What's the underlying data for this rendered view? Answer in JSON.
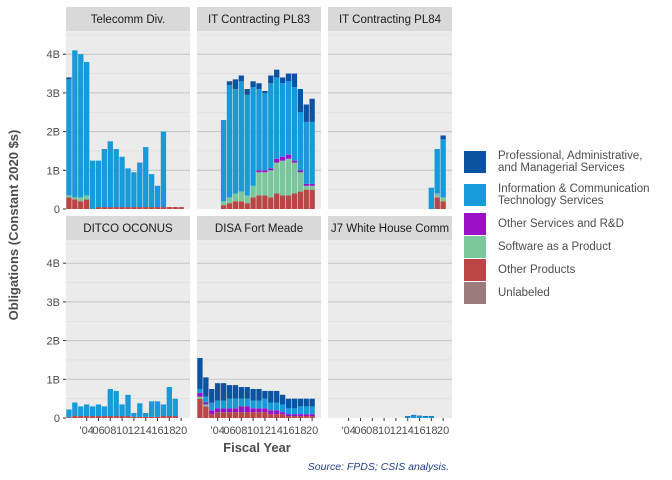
{
  "colors": {
    "Professional, Administrative, and Managerial Services": "#0b53a0",
    "Information & Communication Technology Services": "#169ad9",
    "Other Services and R&D": "#9b0fc8",
    "Software as a Product": "#7bc79c",
    "Other Products": "#b94545",
    "Unlabeled": "#9a7a7a"
  },
  "legend": [
    {
      "label": "Professional, Administrative,\nand Managerial Services",
      "color": "#0b53a0"
    },
    {
      "label": "Information & Communication\nTechnology Services",
      "color": "#169ad9"
    },
    {
      "label": "Other Services and R&D",
      "color": "#9b0fc8"
    },
    {
      "label": "Software as a Product",
      "color": "#7bc79c"
    },
    {
      "label": "Other Products",
      "color": "#b94545"
    },
    {
      "label": "Unlabeled",
      "color": "#9a7a7a"
    }
  ],
  "source": "Source: FPDS; CSIS analysis.",
  "chart_data": {
    "type": "bar",
    "stacked": true,
    "xlabel": "Fiscal Year",
    "ylabel": "Obligations (Constant 2020 $s)",
    "ylim": [
      0,
      4.6
    ],
    "yticks": [
      0,
      1,
      2,
      3,
      4
    ],
    "ytick_labels": [
      "0",
      "1B",
      "2B",
      "3B",
      "4B"
    ],
    "xticks": [
      2004,
      2006,
      2008,
      2010,
      2012,
      2014,
      2016,
      2018,
      2020
    ],
    "xtick_labels": [
      "'04",
      "06",
      "08",
      "10",
      "12",
      "14",
      "16",
      "18",
      "20"
    ],
    "xlim": [
      2000.5,
      2021.5
    ],
    "grid": true,
    "legend_position": "right",
    "series_order": [
      "Other Products",
      "Software as a Product",
      "Other Services and R&D",
      "Information & Communication Technology Services",
      "Professional, Administrative, and Managerial Services",
      "Unlabeled"
    ],
    "panels": [
      {
        "title": "Telecomm Div.",
        "years": [
          2001,
          2002,
          2003,
          2004,
          2005,
          2006,
          2007,
          2008,
          2009,
          2010,
          2011,
          2012,
          2013,
          2014,
          2015,
          2016,
          2017,
          2018,
          2019,
          2020
        ],
        "series": [
          {
            "name": "Other Products",
            "values": [
              0.3,
              0.25,
              0.2,
              0.25,
              0.0,
              0.05,
              0.05,
              0.05,
              0.05,
              0.05,
              0.05,
              0.05,
              0.05,
              0.05,
              0.05,
              0.05,
              0.05,
              0.05,
              0.05,
              0.05
            ]
          },
          {
            "name": "Software as a Product",
            "values": [
              0.05,
              0.05,
              0.1,
              0.1,
              0.0,
              0.0,
              0.0,
              0.0,
              0.0,
              0.0,
              0.0,
              0.0,
              0.0,
              0.0,
              0.0,
              0.0,
              0.0,
              0.0,
              0.0,
              0.0
            ]
          },
          {
            "name": "Other Services and R&D",
            "values": [
              0.0,
              0.0,
              0.0,
              0.0,
              0.0,
              0.0,
              0.0,
              0.0,
              0.0,
              0.0,
              0.0,
              0.0,
              0.0,
              0.0,
              0.0,
              0.0,
              0.0,
              0.0,
              0.0,
              0.0
            ]
          },
          {
            "name": "Information & Communication Technology Services",
            "values": [
              3.0,
              3.8,
              3.7,
              3.45,
              1.25,
              1.2,
              1.5,
              1.7,
              1.5,
              1.3,
              1.0,
              0.9,
              1.15,
              1.55,
              0.85,
              0.55,
              1.95,
              0.0,
              0.0,
              0.0
            ]
          },
          {
            "name": "Professional, Administrative, and Managerial Services",
            "values": [
              0.05,
              0.0,
              0.0,
              0.0,
              0.0,
              0.0,
              0.0,
              0.0,
              0.0,
              0.0,
              0.0,
              0.0,
              0.0,
              0.0,
              0.0,
              0.0,
              0.0,
              0.0,
              0.0,
              0.0
            ]
          }
        ]
      },
      {
        "title": "IT Contracting PL83",
        "years": [
          2001,
          2002,
          2003,
          2004,
          2005,
          2006,
          2007,
          2008,
          2009,
          2010,
          2011,
          2012,
          2013,
          2014,
          2015,
          2016,
          2017,
          2018,
          2019,
          2020
        ],
        "series": [
          {
            "name": "Other Products",
            "values": [
              0.0,
              0.0,
              0.0,
              0.0,
              0.1,
              0.15,
              0.2,
              0.2,
              0.15,
              0.3,
              0.35,
              0.35,
              0.3,
              0.4,
              0.35,
              0.35,
              0.4,
              0.45,
              0.5,
              0.5
            ]
          },
          {
            "name": "Software as a Product",
            "values": [
              0.0,
              0.0,
              0.0,
              0.0,
              0.1,
              0.15,
              0.2,
              0.25,
              0.2,
              0.3,
              0.6,
              0.6,
              0.7,
              0.8,
              0.9,
              0.95,
              0.8,
              0.5,
              0.1,
              0.1
            ]
          },
          {
            "name": "Other Services and R&D",
            "values": [
              0.0,
              0.0,
              0.0,
              0.0,
              0.0,
              0.0,
              0.0,
              0.0,
              0.0,
              0.0,
              0.05,
              0.05,
              0.05,
              0.1,
              0.1,
              0.1,
              0.05,
              0.05,
              0.05,
              0.05
            ]
          },
          {
            "name": "Information & Communication Technology Services",
            "values": [
              0.0,
              0.0,
              0.0,
              0.0,
              2.1,
              2.9,
              2.7,
              2.85,
              2.6,
              2.55,
              2.1,
              2.0,
              2.2,
              2.1,
              1.9,
              1.9,
              1.9,
              1.5,
              1.6,
              1.6
            ]
          },
          {
            "name": "Professional, Administrative, and Managerial Services",
            "values": [
              0.0,
              0.0,
              0.0,
              0.0,
              0.0,
              0.1,
              0.25,
              0.15,
              0.15,
              0.15,
              0.15,
              0.05,
              0.2,
              0.2,
              0.15,
              0.2,
              0.35,
              0.6,
              0.45,
              0.6
            ]
          }
        ]
      },
      {
        "title": "IT Contracting PL84",
        "years": [
          2018,
          2019,
          2020
        ],
        "series": [
          {
            "name": "Other Products",
            "values": [
              0.0,
              0.3,
              0.2
            ]
          },
          {
            "name": "Software as a Product",
            "values": [
              0.0,
              0.1,
              0.1
            ]
          },
          {
            "name": "Other Services and R&D",
            "values": [
              0.0,
              0.0,
              0.0
            ]
          },
          {
            "name": "Information & Communication Technology Services",
            "values": [
              0.55,
              1.15,
              1.5
            ]
          },
          {
            "name": "Professional, Administrative, and Managerial Services",
            "values": [
              0.0,
              0.0,
              0.1
            ]
          }
        ]
      },
      {
        "title": "DITCO OCONUS",
        "years": [
          2001,
          2002,
          2003,
          2004,
          2005,
          2006,
          2007,
          2008,
          2009,
          2010,
          2011,
          2012,
          2013,
          2014,
          2015,
          2016,
          2017,
          2018,
          2019
        ],
        "series": [
          {
            "name": "Other Products",
            "values": [
              0.02,
              0.05,
              0.05,
              0.05,
              0.05,
              0.05,
              0.05,
              0.05,
              0.05,
              0.05,
              0.05,
              0.03,
              0.03,
              0.03,
              0.03,
              0.03,
              0.05,
              0.05,
              0.05
            ]
          },
          {
            "name": "Information & Communication Technology Services",
            "values": [
              0.2,
              0.35,
              0.25,
              0.3,
              0.25,
              0.3,
              0.25,
              0.7,
              0.65,
              0.3,
              0.55,
              0.1,
              0.35,
              0.1,
              0.4,
              0.4,
              0.3,
              0.75,
              0.45
            ]
          }
        ]
      },
      {
        "title": "DISA Fort Meade",
        "years": [
          2001,
          2002,
          2003,
          2004,
          2005,
          2006,
          2007,
          2008,
          2009,
          2010,
          2011,
          2012,
          2013,
          2014,
          2015,
          2016,
          2017,
          2018,
          2019,
          2020
        ],
        "series": [
          {
            "name": "Other Products",
            "values": [
              0.5,
              0.3,
              0.1,
              0.15,
              0.15,
              0.15,
              0.15,
              0.15,
              0.15,
              0.15,
              0.15,
              0.15,
              0.1,
              0.1,
              0.1,
              0.05,
              0.05,
              0.05,
              0.05,
              0.05
            ]
          },
          {
            "name": "Software as a Product",
            "values": [
              0.05,
              0.05,
              0.0,
              0.0,
              0.0,
              0.0,
              0.0,
              0.0,
              0.0,
              0.0,
              0.0,
              0.0,
              0.0,
              0.0,
              0.0,
              0.0,
              0.0,
              0.0,
              0.0,
              0.0
            ]
          },
          {
            "name": "Other Services and R&D",
            "values": [
              0.1,
              0.05,
              0.1,
              0.1,
              0.1,
              0.1,
              0.1,
              0.15,
              0.15,
              0.1,
              0.1,
              0.1,
              0.1,
              0.1,
              0.05,
              0.05,
              0.05,
              0.05,
              0.05,
              0.05
            ]
          },
          {
            "name": "Information & Communication Technology Services",
            "values": [
              0.1,
              0.15,
              0.2,
              0.2,
              0.2,
              0.25,
              0.25,
              0.2,
              0.2,
              0.2,
              0.2,
              0.25,
              0.2,
              0.2,
              0.2,
              0.15,
              0.15,
              0.2,
              0.2,
              0.2
            ]
          },
          {
            "name": "Professional, Administrative, and Managerial Services",
            "values": [
              0.8,
              0.5,
              0.35,
              0.45,
              0.45,
              0.35,
              0.35,
              0.3,
              0.3,
              0.3,
              0.3,
              0.2,
              0.3,
              0.3,
              0.25,
              0.25,
              0.25,
              0.2,
              0.2,
              0.2
            ]
          }
        ]
      },
      {
        "title": "J7 White House Comm",
        "years": [
          2014,
          2015,
          2016,
          2017,
          2018
        ],
        "series": [
          {
            "name": "Information & Communication Technology Services",
            "values": [
              0.04,
              0.07,
              0.05,
              0.04,
              0.04
            ]
          },
          {
            "name": "Professional, Administrative, and Managerial Services",
            "values": [
              0.01,
              0.01,
              0.01,
              0.01,
              0.01
            ]
          }
        ]
      }
    ]
  }
}
